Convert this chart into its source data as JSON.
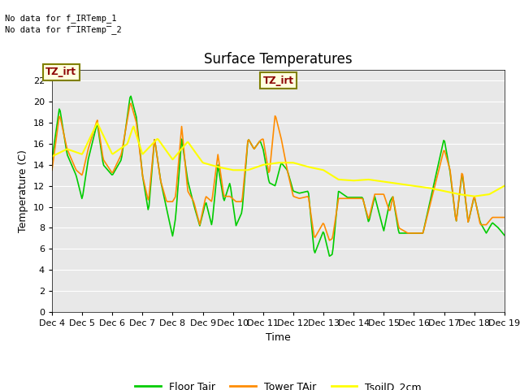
{
  "title": "Surface Temperatures",
  "xlabel": "Time",
  "ylabel": "Temperature (C)",
  "ylim": [
    0,
    23
  ],
  "yticks": [
    0,
    2,
    4,
    6,
    8,
    10,
    12,
    14,
    16,
    18,
    20,
    22
  ],
  "xtick_labels": [
    "Dec 4",
    "Dec 5",
    "Dec 6",
    "Dec 7",
    "Dec 8",
    "Dec 9",
    "Dec 10",
    "Dec 11",
    "Dec 12",
    "Dec 13",
    "Dec 14",
    "Dec 15",
    "Dec 16",
    "Dec 17",
    "Dec 18",
    "Dec 19"
  ],
  "color_floor": "#00CC00",
  "color_tower": "#FF8C00",
  "color_soil": "#FFFF00",
  "legend_labels": [
    "Floor Tair",
    "Tower TAir",
    "TsoilD_2cm"
  ],
  "annotation_text1": "No data for f_IRTemp_1",
  "annotation_text2": "No data for f̅IRTemp̅_2",
  "tz_irt_label": "TZ_irt",
  "bg_color": "#E8E8E8",
  "title_fontsize": 12,
  "axis_fontsize": 9,
  "tick_fontsize": 8,
  "line_width": 1.2
}
